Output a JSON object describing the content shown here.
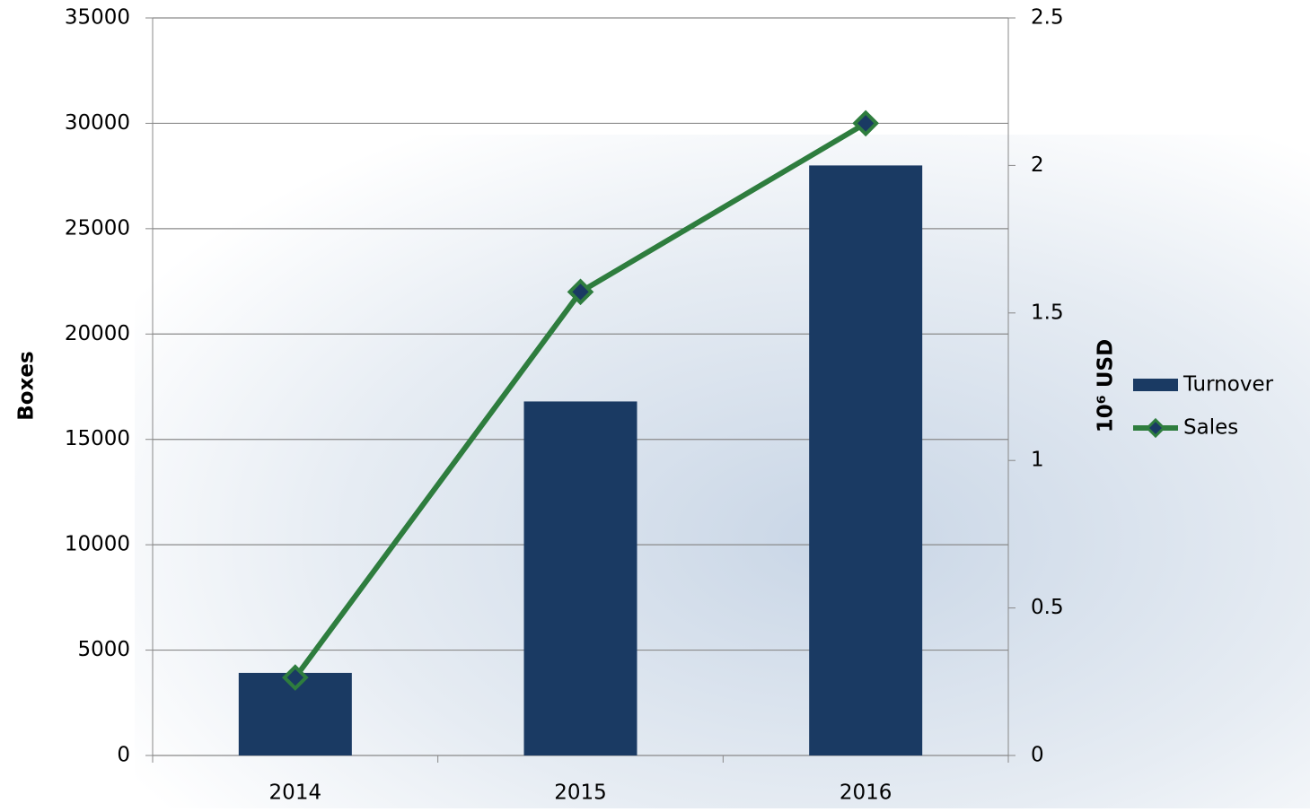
{
  "chart_data": {
    "type": "bar-line",
    "categories": [
      "2014",
      "2015",
      "2016"
    ],
    "y_label": "Boxes",
    "y2_label": "10⁶ USD",
    "series": [
      {
        "name": "Turnover",
        "type": "bar",
        "axis": "y2",
        "color": "#1a3a63",
        "values": [
          0.28,
          1.2,
          2.0
        ]
      },
      {
        "name": "Sales",
        "type": "line",
        "axis": "y",
        "color": "#2e7d3e",
        "values": [
          3700,
          22000,
          30000
        ]
      }
    ],
    "ylim": [
      0,
      35000
    ],
    "yticks": [
      0,
      5000,
      10000,
      15000,
      20000,
      25000,
      30000,
      35000
    ],
    "y2lim": [
      0,
      2.5
    ],
    "y2ticks": [
      0,
      0.5,
      1,
      1.5,
      2,
      2.5
    ],
    "grid": true,
    "legend": "right"
  }
}
